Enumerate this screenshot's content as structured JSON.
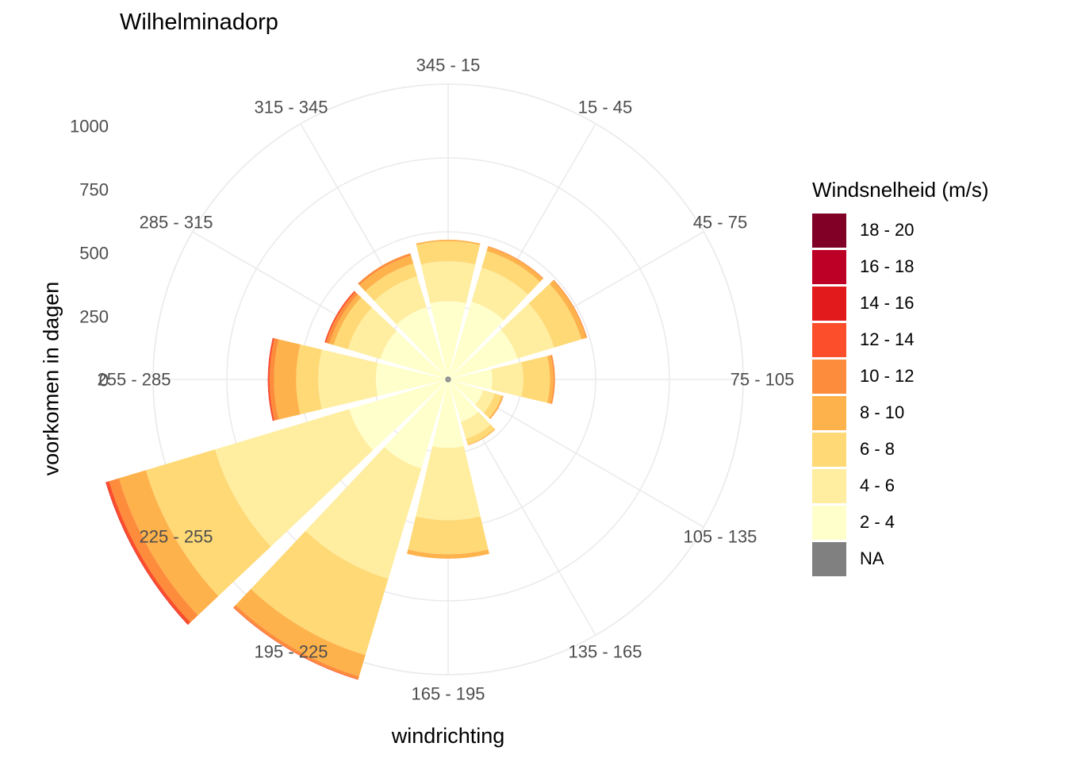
{
  "chart_data": {
    "type": "windrose",
    "title": "Wilhelminadorp",
    "xlabel": "windrichting",
    "ylabel": "voorkomen in dagen",
    "rlim": [
      0,
      1000
    ],
    "radial_ticks": [
      "0",
      "250",
      "500",
      "750",
      "1000"
    ],
    "radial_tick_values": [
      0,
      250,
      500,
      750,
      1000
    ],
    "direction_angles": [
      0,
      30,
      60,
      90,
      120,
      150,
      180,
      210,
      240,
      270,
      300,
      330
    ],
    "categories": [
      "345 - 15",
      "15 - 45",
      "45 - 75",
      "75 - 105",
      "105 - 135",
      "135 - 165",
      "165 - 195",
      "195 - 225",
      "225 - 255",
      "255 - 285",
      "285 - 315",
      "315 - 345"
    ],
    "grid": true,
    "legend_position": "right",
    "legend_title": "Windsnelheid (m/s)",
    "series": [
      {
        "name": "NA",
        "color": "#808080",
        "values": [
          10,
          10,
          10,
          10,
          10,
          10,
          10,
          10,
          10,
          10,
          10,
          10
        ]
      },
      {
        "name": "2 - 4",
        "color": "#FFFFCC",
        "values": [
          255,
          265,
          235,
          140,
          115,
          140,
          222,
          305,
          340,
          235,
          230,
          245
        ]
      },
      {
        "name": "4 - 6",
        "color": "#FFEDA0",
        "values": [
          135,
          120,
          130,
          105,
          40,
          60,
          245,
          390,
          475,
          195,
          115,
          110
        ]
      },
      {
        "name": "6 - 8",
        "color": "#FED976",
        "values": [
          68,
          59,
          97,
          90,
          25,
          20,
          115,
          270,
          245,
          75,
          50,
          45
        ]
      },
      {
        "name": "8 - 10",
        "color": "#FEB24C",
        "values": [
          5,
          14,
          17,
          12,
          5,
          3,
          15,
          75,
          95,
          75,
          15,
          28
        ]
      },
      {
        "name": "10 - 12",
        "color": "#FD8D3C",
        "values": [
          0,
          3,
          3,
          5,
          1,
          0,
          0,
          10,
          35,
          15,
          12,
          8
        ]
      },
      {
        "name": "12 - 14",
        "color": "#FC4E2A",
        "values": [
          0,
          0,
          0,
          0,
          0,
          0,
          0,
          2,
          10,
          5,
          5,
          0
        ]
      },
      {
        "name": "14 - 16",
        "color": "#E31A1C",
        "values": [
          0,
          0,
          0,
          0,
          0,
          0,
          0,
          0,
          2,
          1,
          0,
          0
        ]
      },
      {
        "name": "16 - 18",
        "color": "#BD0026",
        "values": [
          0,
          0,
          0,
          0,
          0,
          0,
          0,
          0,
          0,
          0,
          0,
          0
        ]
      },
      {
        "name": "18 - 20",
        "color": "#800026",
        "values": [
          0,
          0,
          0,
          0,
          0,
          0,
          0,
          0,
          0,
          0,
          0,
          0
        ]
      }
    ],
    "legend_items": [
      {
        "label": "18 - 20",
        "color": "#800026"
      },
      {
        "label": "16 - 18",
        "color": "#BD0026"
      },
      {
        "label": "14 - 16",
        "color": "#E31A1C"
      },
      {
        "label": "12 - 14",
        "color": "#FC4E2A"
      },
      {
        "label": "10 - 12",
        "color": "#FD8D3C"
      },
      {
        "label": "8 - 10",
        "color": "#FEB24C"
      },
      {
        "label": "6 - 8",
        "color": "#FED976"
      },
      {
        "label": "4 - 6",
        "color": "#FFEDA0"
      },
      {
        "label": "2 - 4",
        "color": "#FFFFCC"
      },
      {
        "label": "NA",
        "color": "#808080"
      }
    ],
    "colors": {
      "grid": "#EBEBEB",
      "axis_text": "#4D4D4D"
    }
  }
}
